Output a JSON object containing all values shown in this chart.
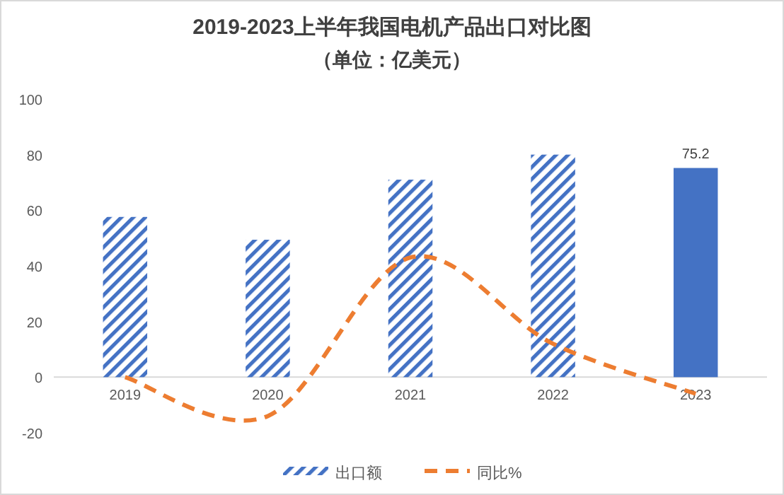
{
  "chart_data": {
    "type": "bar",
    "title": "2019-2023上半年我国电机产品出口对比图",
    "subtitle": "（单位：亿美元）",
    "categories": [
      "2019",
      "2020",
      "2021",
      "2022",
      "2023"
    ],
    "series": [
      {
        "name": "出口额",
        "color": "#4472c4",
        "values": [
          57.6,
          49.4,
          71.0,
          80.0,
          75.2
        ],
        "value_labels": [
          null,
          null,
          null,
          null,
          "75.2"
        ]
      },
      {
        "name": "同比%",
        "type": "line",
        "color": "#ed7d31",
        "line_style": "dashed",
        "values": [
          0,
          -14,
          43,
          12,
          -6
        ]
      }
    ],
    "ylim": [
      -20,
      100
    ],
    "yticks": [
      -20,
      0,
      20,
      40,
      60,
      80,
      100
    ],
    "grid": false,
    "legend": "bottom"
  }
}
